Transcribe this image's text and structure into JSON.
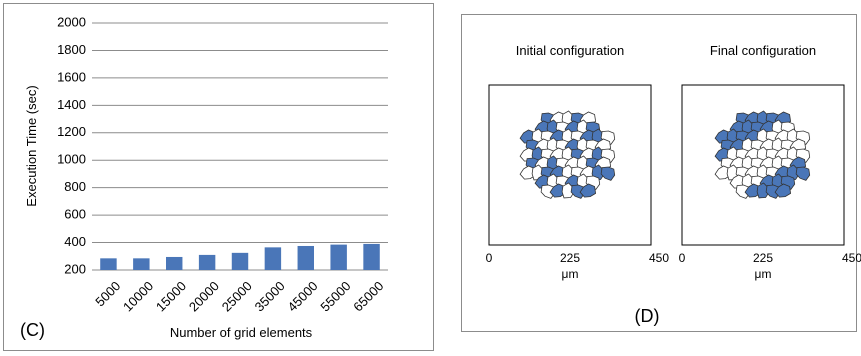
{
  "panel_c": {
    "letter": "(C)",
    "chart_data": {
      "type": "bar",
      "title": "",
      "xlabel": "Number of grid elements",
      "ylabel": "Execution Time (sec)",
      "categories": [
        "5000",
        "10000",
        "15000",
        "20000",
        "25000",
        "35000",
        "45000",
        "55000",
        "65000"
      ],
      "values": [
        285,
        285,
        295,
        310,
        325,
        365,
        375,
        385,
        390
      ],
      "ylim": [
        200,
        2000
      ],
      "yticks": [
        "200",
        "400",
        "600",
        "800",
        "1000",
        "1200",
        "1400",
        "1600",
        "1800",
        "2000"
      ],
      "grid": true,
      "bar_color": "#4a76b8",
      "grid_color": "#8c8c8c"
    }
  },
  "panel_d": {
    "letter": "(D)",
    "fill_color": "#4a76b8",
    "configs": [
      {
        "title": "Initial configuration",
        "xticks": [
          "0",
          "225",
          "450"
        ],
        "unit": "μm"
      },
      {
        "title": "Final configuration",
        "xticks": [
          "0",
          "225",
          "450"
        ],
        "unit": "μm"
      }
    ]
  }
}
